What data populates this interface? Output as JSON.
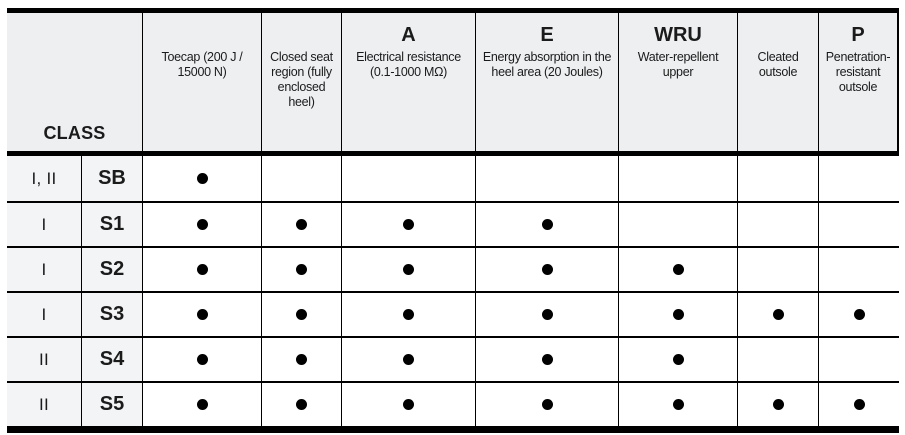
{
  "table": {
    "class_header_label": "CLASS",
    "columns": [
      {
        "id": "toecap",
        "symbol": "",
        "label": "Toecap (200 J / 15000 N)"
      },
      {
        "id": "closed-seat",
        "symbol": "",
        "label": "Closed seat region (fully enclosed heel)"
      },
      {
        "id": "electrical-resistance",
        "symbol": "A",
        "label": "Electrical resistance (0.1-1000 MΩ)"
      },
      {
        "id": "energy-absorption",
        "symbol": "E",
        "label": "Energy absorption in the heel area (20 Joules)"
      },
      {
        "id": "water-repellent-upper",
        "symbol": "WRU",
        "label": "Water-repellent upper"
      },
      {
        "id": "cleated-outsole",
        "symbol": "",
        "label": "Cleated outsole"
      },
      {
        "id": "penetration-resistant",
        "symbol": "P",
        "label": "Penetration-resistant outsole"
      }
    ],
    "rows": [
      {
        "class": "I, II",
        "code": "SB",
        "features": [
          true,
          false,
          false,
          false,
          false,
          false,
          false
        ]
      },
      {
        "class": "I",
        "code": "S1",
        "features": [
          true,
          true,
          true,
          true,
          false,
          false,
          false
        ]
      },
      {
        "class": "I",
        "code": "S2",
        "features": [
          true,
          true,
          true,
          true,
          true,
          false,
          false
        ]
      },
      {
        "class": "I",
        "code": "S3",
        "features": [
          true,
          true,
          true,
          true,
          true,
          true,
          true
        ]
      },
      {
        "class": "II",
        "code": "S4",
        "features": [
          true,
          true,
          true,
          true,
          true,
          false,
          false
        ]
      },
      {
        "class": "II",
        "code": "S5",
        "features": [
          true,
          true,
          true,
          true,
          true,
          true,
          true
        ]
      }
    ],
    "marker": "filled-dot",
    "colors": {
      "header_bg": "#edeff1",
      "class_cell_bg": "#f2f4f6",
      "border": "#000000",
      "dot": "#000000",
      "text": "#1b1b1b",
      "page_bg": "#ffffff"
    }
  }
}
